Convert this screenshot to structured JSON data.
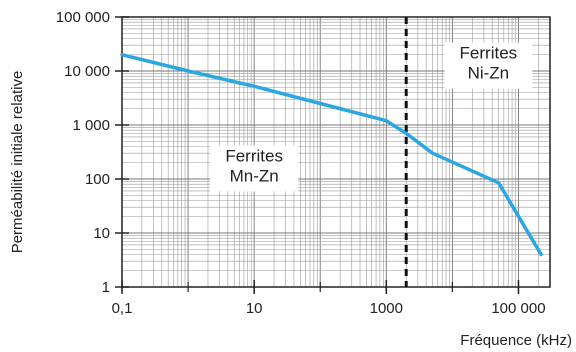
{
  "chart_data": {
    "type": "line",
    "title": "",
    "xlabel": "Fréquence (kHz)",
    "ylabel": "Perméabilité initiale relative",
    "x_scale": "log",
    "y_scale": "log",
    "xlim": [
      0.1,
      300000
    ],
    "ylim": [
      1,
      100000
    ],
    "x_ticks": [
      {
        "value": 0.1,
        "label": "0,1"
      },
      {
        "value": 10,
        "label": "10"
      },
      {
        "value": 1000,
        "label": "1000"
      },
      {
        "value": 100000,
        "label": "100 000"
      }
    ],
    "y_ticks": [
      {
        "value": 1,
        "label": "1"
      },
      {
        "value": 10,
        "label": "10"
      },
      {
        "value": 100,
        "label": "100"
      },
      {
        "value": 1000,
        "label": "1 000"
      },
      {
        "value": 10000,
        "label": "10 000"
      },
      {
        "value": 100000,
        "label": "100 000"
      }
    ],
    "grid": true,
    "series": [
      {
        "color": "#2aa7e0",
        "x": [
          0.1,
          1,
          10,
          100,
          1000,
          2000,
          5000,
          50000,
          220000
        ],
        "y": [
          20000,
          10000,
          5200,
          2500,
          1200,
          700,
          300,
          85,
          4
        ]
      }
    ],
    "divider": {
      "x": 2000,
      "style": "dashed"
    },
    "annotations": [
      {
        "lines": [
          "Ferrites",
          "Mn-Zn"
        ],
        "x": 10,
        "y": 150
      },
      {
        "lines": [
          "Ferrites",
          "Ni-Zn"
        ],
        "x": 35000,
        "y": 12000
      }
    ]
  }
}
